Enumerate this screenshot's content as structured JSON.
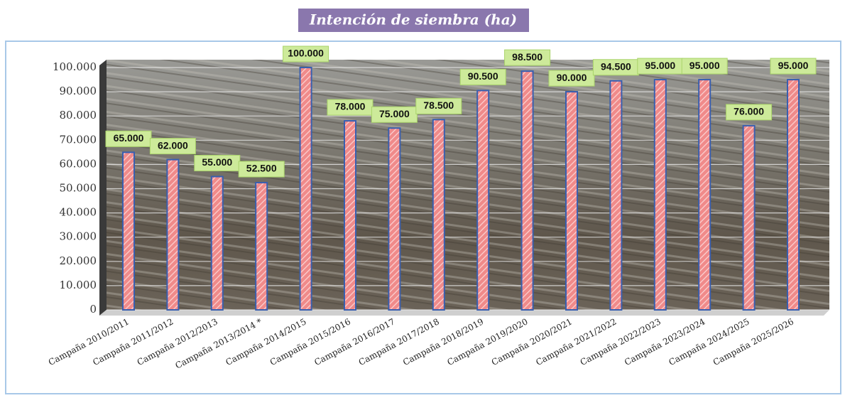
{
  "chart_data": {
    "type": "bar",
    "title": "Intención de siembra (ha)",
    "categories": [
      "Campaña 2010/2011",
      "Campaña 2011/2012",
      "Campaña 2012/2013",
      "Campaña 2013/2014 *",
      "Campaña 2014/2015",
      "Campaña 2015/2016",
      "Campaña 2016/2017",
      "Campaña 2017/2018",
      "Campaña 2018/2019",
      "Campaña 2019/2020",
      "Campaña 2020/2021",
      "Campaña 2021/2022",
      "Campaña 2022/2023",
      "Campaña 2023/2024",
      "Campaña 2024/2025",
      "Campaña 2025/2026"
    ],
    "values": [
      65000,
      62000,
      55000,
      52500,
      100000,
      78000,
      75000,
      78500,
      90500,
      98500,
      90000,
      94500,
      95000,
      95000,
      76000,
      95000
    ],
    "value_labels": [
      "65.000",
      "62.000",
      "55.000",
      "52.500",
      "100.000",
      "78.000",
      "75.000",
      "78.500",
      "90.500",
      "98.500",
      "90.000",
      "94.500",
      "95.000",
      "95.000",
      "76.000",
      "95.000"
    ],
    "color": "#f08a8a",
    "ylim": [
      0,
      100000
    ],
    "yticks": [
      0,
      {
        "value": 10000,
        "label": "10.000"
      },
      {
        "value": 20000,
        "label": "20.000"
      },
      {
        "value": 30000,
        "label": "30.000"
      },
      {
        "value": 40000,
        "label": "40.000"
      },
      {
        "value": 50000,
        "label": "50.000"
      },
      {
        "value": 60000,
        "label": "60.000"
      },
      {
        "value": 70000,
        "label": "70.000"
      },
      {
        "value": 80000,
        "label": "80.000"
      },
      {
        "value": 90000,
        "label": "90.000"
      },
      {
        "value": 100000,
        "label": "100.000"
      }
    ],
    "grid": true
  }
}
